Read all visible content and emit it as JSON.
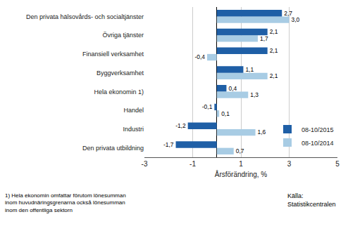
{
  "chart_data": {
    "type": "bar",
    "orientation": "horizontal",
    "categories": [
      "Den privata utbildning",
      "Industri",
      "Handel",
      "Hela ekonomin 1)",
      "Byggverksamhet",
      "Finansiell verksamhet",
      "Övriga tjänster",
      "Den privata hälsovårds- och socialtjänster"
    ],
    "series": [
      {
        "name": "08-10/2015",
        "color": "#1f5fa6",
        "values": [
          -1.7,
          -1.2,
          -0.1,
          0.4,
          1.1,
          2.1,
          2.1,
          2.7
        ],
        "value_labels": [
          "-1,7",
          "-1,2",
          "-0,1",
          "0,4",
          "1,1",
          "2,1",
          "2,1",
          "2,7"
        ]
      },
      {
        "name": "08-10/2014",
        "color": "#a8cce4",
        "values": [
          0.7,
          1.6,
          0.1,
          1.3,
          2.1,
          -0.4,
          1.7,
          3.0
        ],
        "value_labels": [
          "0,7",
          "1,6",
          "0,1",
          "1,3",
          "2,1",
          "-0,4",
          "1,7",
          "3,0"
        ]
      }
    ],
    "xlabel": "Årsförändring, %",
    "xlim": [
      -3,
      5
    ],
    "xticks": [
      -3,
      -1,
      1,
      3,
      5
    ],
    "grid": true,
    "legend": "lower right",
    "data_labels": true,
    "annotations": [
      "1) Hela ekonomin omfattar förutom lönesumman\ninom huvudnäringsgrenarna också lönesumman\ninom den offentliga sektorn",
      "Källa:\nStatistikcentralen"
    ]
  }
}
